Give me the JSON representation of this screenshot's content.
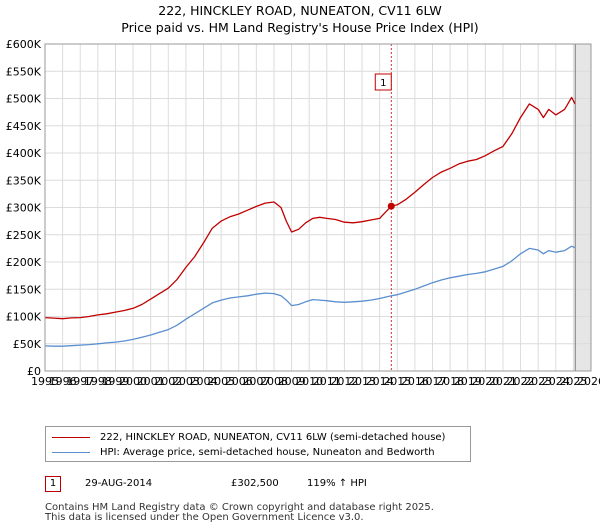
{
  "header": {
    "title": "222, HINCKLEY ROAD, NUNEATON, CV11 6LW",
    "subtitle": "Price paid vs. HM Land Registry's House Price Index (HPI)"
  },
  "colors": {
    "price_paid": "#c00000",
    "hpi": "#5b8fd0",
    "grid": "#dcdcdc",
    "plot_bg": "#ffffff"
  },
  "chart_data": {
    "type": "line",
    "xlim": [
      1995,
      2026
    ],
    "ylim": [
      0,
      600000
    ],
    "x_ticks": [
      "1995",
      "1996",
      "1997",
      "1998",
      "1999",
      "2000",
      "2001",
      "2002",
      "2003",
      "2004",
      "2005",
      "2006",
      "2007",
      "2008",
      "2009",
      "2010",
      "2011",
      "2012",
      "2013",
      "2014",
      "2015",
      "2016",
      "2017",
      "2018",
      "2019",
      "2020",
      "2021",
      "2022",
      "2023",
      "2024",
      "2025",
      "2026"
    ],
    "y_ticks": [
      {
        "value": 0,
        "label": "£0"
      },
      {
        "value": 50000,
        "label": "£50K"
      },
      {
        "value": 100000,
        "label": "£100K"
      },
      {
        "value": 150000,
        "label": "£150K"
      },
      {
        "value": 200000,
        "label": "£200K"
      },
      {
        "value": 250000,
        "label": "£250K"
      },
      {
        "value": 300000,
        "label": "£300K"
      },
      {
        "value": 350000,
        "label": "£350K"
      },
      {
        "value": 400000,
        "label": "£400K"
      },
      {
        "value": 450000,
        "label": "£450K"
      },
      {
        "value": 500000,
        "label": "£500K"
      },
      {
        "value": 550000,
        "label": "£550K"
      },
      {
        "value": 600000,
        "label": "£600K"
      }
    ],
    "series": [
      {
        "name": "222, HINCKLEY ROAD, NUNEATON, CV11 6LW (semi-detached house)",
        "points": [
          [
            1995.0,
            98000
          ],
          [
            1995.5,
            97000
          ],
          [
            1996.0,
            96000
          ],
          [
            1996.5,
            97500
          ],
          [
            1997.0,
            98000
          ],
          [
            1997.5,
            100000
          ],
          [
            1998.0,
            103000
          ],
          [
            1998.5,
            105000
          ],
          [
            1999.0,
            108000
          ],
          [
            1999.5,
            111000
          ],
          [
            2000.0,
            115000
          ],
          [
            2000.5,
            122000
          ],
          [
            2001.0,
            132000
          ],
          [
            2001.5,
            142000
          ],
          [
            2002.0,
            152000
          ],
          [
            2002.5,
            168000
          ],
          [
            2003.0,
            190000
          ],
          [
            2003.5,
            210000
          ],
          [
            2004.0,
            235000
          ],
          [
            2004.5,
            262000
          ],
          [
            2005.0,
            275000
          ],
          [
            2005.5,
            283000
          ],
          [
            2006.0,
            288000
          ],
          [
            2006.5,
            295000
          ],
          [
            2007.0,
            302000
          ],
          [
            2007.5,
            308000
          ],
          [
            2008.0,
            310000
          ],
          [
            2008.4,
            300000
          ],
          [
            2008.7,
            275000
          ],
          [
            2009.0,
            255000
          ],
          [
            2009.4,
            260000
          ],
          [
            2009.8,
            272000
          ],
          [
            2010.2,
            280000
          ],
          [
            2010.6,
            282000
          ],
          [
            2011.0,
            280000
          ],
          [
            2011.5,
            278000
          ],
          [
            2012.0,
            273000
          ],
          [
            2012.5,
            272000
          ],
          [
            2013.0,
            274000
          ],
          [
            2013.5,
            277000
          ],
          [
            2014.0,
            280000
          ],
          [
            2014.66,
            302500
          ],
          [
            2015.0,
            305000
          ],
          [
            2015.5,
            315000
          ],
          [
            2016.0,
            328000
          ],
          [
            2016.5,
            342000
          ],
          [
            2017.0,
            355000
          ],
          [
            2017.5,
            365000
          ],
          [
            2018.0,
            372000
          ],
          [
            2018.5,
            380000
          ],
          [
            2019.0,
            385000
          ],
          [
            2019.5,
            388000
          ],
          [
            2020.0,
            395000
          ],
          [
            2020.5,
            404000
          ],
          [
            2021.0,
            412000
          ],
          [
            2021.5,
            435000
          ],
          [
            2022.0,
            465000
          ],
          [
            2022.5,
            490000
          ],
          [
            2023.0,
            480000
          ],
          [
            2023.3,
            465000
          ],
          [
            2023.6,
            480000
          ],
          [
            2024.0,
            470000
          ],
          [
            2024.5,
            480000
          ],
          [
            2024.9,
            502000
          ],
          [
            2025.1,
            490000
          ]
        ]
      },
      {
        "name": "HPI: Average price, semi-detached house, Nuneaton and Bedworth",
        "points": [
          [
            1995.0,
            46000
          ],
          [
            1995.5,
            45500
          ],
          [
            1996.0,
            45500
          ],
          [
            1996.5,
            46500
          ],
          [
            1997.0,
            47500
          ],
          [
            1997.5,
            48500
          ],
          [
            1998.0,
            50000
          ],
          [
            1998.5,
            51500
          ],
          [
            1999.0,
            53000
          ],
          [
            1999.5,
            55000
          ],
          [
            2000.0,
            58000
          ],
          [
            2000.5,
            62000
          ],
          [
            2001.0,
            66000
          ],
          [
            2001.5,
            71000
          ],
          [
            2002.0,
            76000
          ],
          [
            2002.5,
            84000
          ],
          [
            2003.0,
            95000
          ],
          [
            2003.5,
            105000
          ],
          [
            2004.0,
            115000
          ],
          [
            2004.5,
            125000
          ],
          [
            2005.0,
            130000
          ],
          [
            2005.5,
            134000
          ],
          [
            2006.0,
            136000
          ],
          [
            2006.5,
            138000
          ],
          [
            2007.0,
            141000
          ],
          [
            2007.5,
            143000
          ],
          [
            2008.0,
            142000
          ],
          [
            2008.4,
            138000
          ],
          [
            2008.7,
            130000
          ],
          [
            2009.0,
            120000
          ],
          [
            2009.4,
            122000
          ],
          [
            2009.8,
            127000
          ],
          [
            2010.2,
            131000
          ],
          [
            2010.6,
            130000
          ],
          [
            2011.0,
            129000
          ],
          [
            2011.5,
            127000
          ],
          [
            2012.0,
            126000
          ],
          [
            2012.5,
            127000
          ],
          [
            2013.0,
            128000
          ],
          [
            2013.5,
            130000
          ],
          [
            2014.0,
            133000
          ],
          [
            2014.66,
            138000
          ],
          [
            2015.0,
            140000
          ],
          [
            2015.5,
            145000
          ],
          [
            2016.0,
            150000
          ],
          [
            2016.5,
            156000
          ],
          [
            2017.0,
            162000
          ],
          [
            2017.5,
            167000
          ],
          [
            2018.0,
            171000
          ],
          [
            2018.5,
            174000
          ],
          [
            2019.0,
            177000
          ],
          [
            2019.5,
            179000
          ],
          [
            2020.0,
            182000
          ],
          [
            2020.5,
            187000
          ],
          [
            2021.0,
            192000
          ],
          [
            2021.5,
            202000
          ],
          [
            2022.0,
            215000
          ],
          [
            2022.5,
            225000
          ],
          [
            2023.0,
            222000
          ],
          [
            2023.3,
            215000
          ],
          [
            2023.6,
            221000
          ],
          [
            2024.0,
            218000
          ],
          [
            2024.5,
            221000
          ],
          [
            2024.9,
            229000
          ],
          [
            2025.1,
            226000
          ]
        ]
      }
    ],
    "annotations": [
      {
        "label": "1",
        "x": 2014.66,
        "y": 302500
      }
    ],
    "future_from": 2025.1
  },
  "legend": {
    "items": [
      {
        "label": "222, HINCKLEY ROAD, NUNEATON, CV11 6LW (semi-detached house)"
      },
      {
        "label": "HPI: Average price, semi-detached house, Nuneaton and Bedworth"
      }
    ]
  },
  "annotation_table": [
    {
      "num": "1",
      "date": "29-AUG-2014",
      "price": "£302,500",
      "hpi": "119% ↑ HPI"
    }
  ],
  "footer": {
    "line1": "Contains HM Land Registry data © Crown copyright and database right 2025.",
    "line2": "This data is licensed under the Open Government Licence v3.0."
  }
}
